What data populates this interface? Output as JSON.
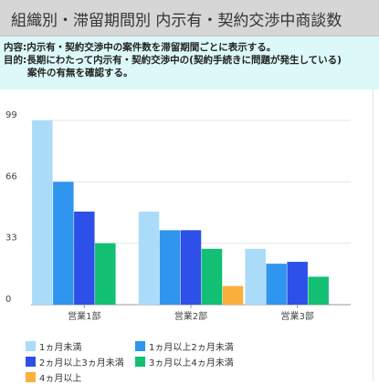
{
  "header": {
    "title": "組織別・滞留期間別 内示有・契約交渉中商談数"
  },
  "description": {
    "line1": "内容:内示有・契約交渉中の案件数を滞留期間ごとに表示する。",
    "line2": "目的:長期にわたって内示有・契約交渉中の(契約手続きに問題が発生している)",
    "line3": "案件の有無を確認する。"
  },
  "chart_data": {
    "type": "bar",
    "categories": [
      "営業1部",
      "営業2部",
      "営業3部"
    ],
    "series": [
      {
        "name": "1ヵ月未満",
        "color": "#aadcfa",
        "values": [
          99,
          50,
          30
        ]
      },
      {
        "name": "1ヵ月以上2ヵ月未満",
        "color": "#2f95ee",
        "values": [
          66,
          40,
          22
        ]
      },
      {
        "name": "2ヵ月以上3ヵ月未満",
        "color": "#2d50e8",
        "values": [
          50,
          40,
          23
        ]
      },
      {
        "name": "3ヵ月以上4ヵ月未満",
        "color": "#12bf73",
        "values": [
          33,
          30,
          15
        ]
      },
      {
        "name": "4ヵ月以上",
        "color": "#fbb03b",
        "values": [
          0,
          10,
          0
        ]
      }
    ],
    "yticks": [
      0,
      33,
      66,
      99
    ],
    "ylim": [
      0,
      99
    ],
    "grid": true,
    "legend_position": "bottom"
  }
}
